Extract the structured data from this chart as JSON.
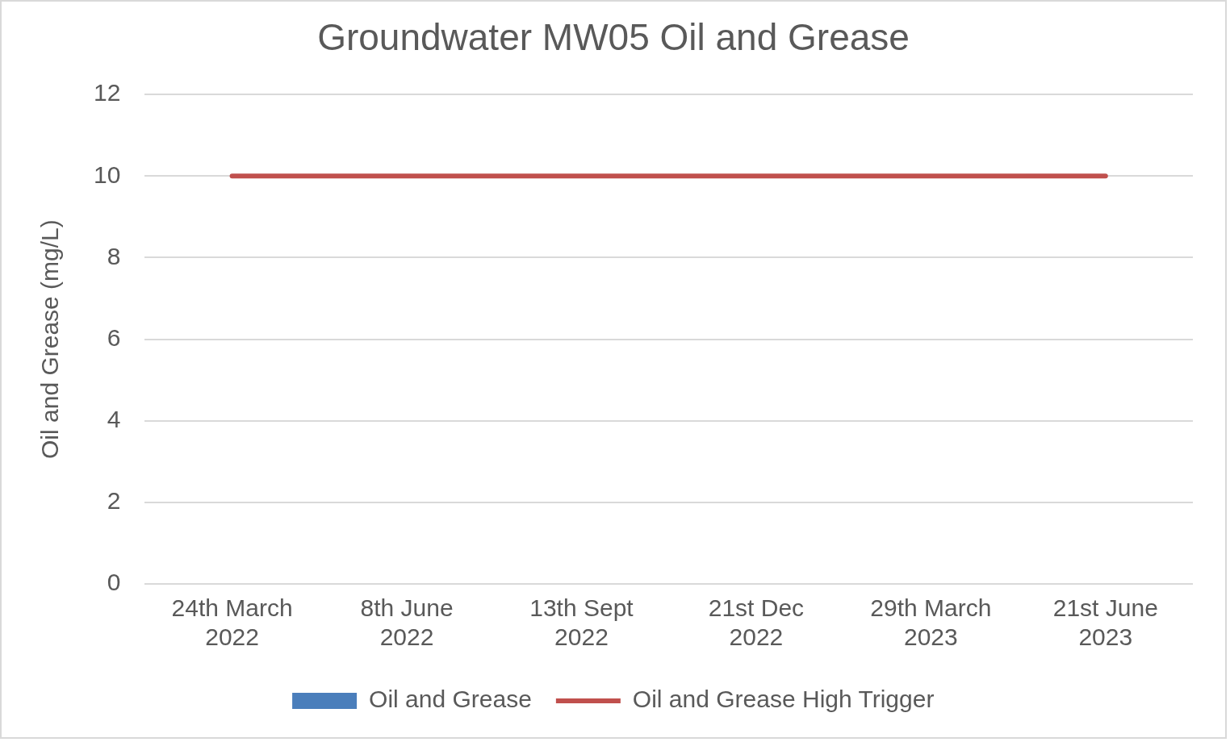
{
  "chart_data": {
    "type": "bar",
    "title": "Groundwater MW05 Oil and Grease",
    "ylabel": "Oil and Grease (mg/L)",
    "categories": [
      "24th March 2022",
      "8th June 2022",
      "13th Sept 2022",
      "21st Dec 2022",
      "29th March 2023",
      "21st June 2023"
    ],
    "series": [
      {
        "name": "Oil and Grease",
        "color": "#4a7ebb",
        "values": [
          null,
          null,
          null,
          null,
          null,
          null
        ]
      },
      {
        "name": "Oil and Grease High Trigger",
        "type": "line",
        "color": "#c0504d",
        "values": [
          10,
          10,
          10,
          10,
          10,
          10
        ]
      }
    ],
    "ylim": [
      0,
      12
    ],
    "yticks": [
      0,
      2,
      4,
      6,
      8,
      10,
      12
    ],
    "grid": "y",
    "legend": "bottom",
    "marker": "none"
  }
}
